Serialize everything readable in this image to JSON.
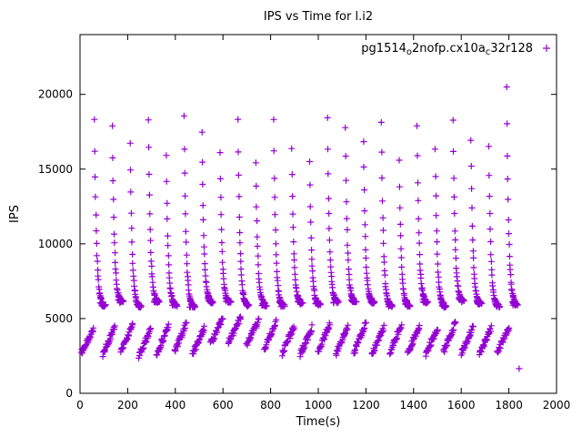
{
  "window": {
    "title": "IPS vs Time for l.i2"
  },
  "chart_data": {
    "type": "scatter",
    "title": "IPS vs Time for l.i2",
    "xlabel": "Time(s)",
    "ylabel": "IPS",
    "xlim": [
      0,
      2000
    ],
    "ylim": [
      0,
      24000
    ],
    "xticks": [
      0,
      200,
      400,
      600,
      800,
      1000,
      1200,
      1400,
      1600,
      1800,
      2000
    ],
    "yticks": [
      0,
      5000,
      10000,
      15000,
      20000
    ],
    "grid": false,
    "frame_color": "#000000",
    "marker": {
      "shape": "plus",
      "color": "#9400D3",
      "size": 7
    },
    "legend": {
      "position": "top-right-inside",
      "label": "pg1514o2nofp.cx10ac32r128",
      "segments": [
        {
          "text": "pg1514"
        },
        {
          "text": "o",
          "sub": true
        },
        {
          "text": "2nofp.cx10a"
        },
        {
          "text": "c",
          "sub": true
        },
        {
          "text": "32r128"
        }
      ],
      "marker": "+"
    },
    "series_model": {
      "description": "Repeating exponential-decay spike clusters (peak ~15500-20400 decaying to ~5900 floor) plus a low band of rising ramps between ~2600 and ~5100 IPS",
      "decay_floor": 5900,
      "decay_tau_points": 5.5,
      "spike_point_step_s": 1.5,
      "spikes": [
        {
          "t": 60,
          "peak": 18300
        },
        {
          "t": 135,
          "peak": 17800
        },
        {
          "t": 210,
          "peak": 16700
        },
        {
          "t": 286,
          "peak": 18400
        },
        {
          "t": 361,
          "peak": 15800
        },
        {
          "t": 436,
          "peak": 18500
        },
        {
          "t": 511,
          "peak": 17400
        },
        {
          "t": 587,
          "peak": 16100
        },
        {
          "t": 662,
          "peak": 18300
        },
        {
          "t": 737,
          "peak": 15500
        },
        {
          "t": 812,
          "peak": 18300
        },
        {
          "t": 888,
          "peak": 16400
        },
        {
          "t": 963,
          "peak": 15400
        },
        {
          "t": 1038,
          "peak": 18300
        },
        {
          "t": 1113,
          "peak": 17900
        },
        {
          "t": 1189,
          "peak": 16900
        },
        {
          "t": 1264,
          "peak": 18200
        },
        {
          "t": 1339,
          "peak": 15500
        },
        {
          "t": 1414,
          "peak": 17800
        },
        {
          "t": 1490,
          "peak": 16400
        },
        {
          "t": 1565,
          "peak": 18200
        },
        {
          "t": 1640,
          "peak": 17000
        },
        {
          "t": 1715,
          "peak": 16400
        },
        {
          "t": 1790,
          "peak": 20400
        }
      ],
      "low_ramps": [
        {
          "t": 5,
          "y_start": 2700,
          "y_end": 4200,
          "dur": 50
        },
        {
          "t": 95,
          "y_start": 2600,
          "y_end": 4400,
          "dur": 50
        },
        {
          "t": 170,
          "y_start": 2800,
          "y_end": 4600,
          "dur": 50
        },
        {
          "t": 246,
          "y_start": 2500,
          "y_end": 4300,
          "dur": 50
        },
        {
          "t": 321,
          "y_start": 2650,
          "y_end": 4500,
          "dur": 50
        },
        {
          "t": 396,
          "y_start": 2750,
          "y_end": 4700,
          "dur": 50
        },
        {
          "t": 471,
          "y_start": 2600,
          "y_end": 4400,
          "dur": 50
        },
        {
          "t": 547,
          "y_start": 3300,
          "y_end": 5000,
          "dur": 52
        },
        {
          "t": 622,
          "y_start": 3400,
          "y_end": 5100,
          "dur": 52
        },
        {
          "t": 697,
          "y_start": 3200,
          "y_end": 4900,
          "dur": 52
        },
        {
          "t": 772,
          "y_start": 2900,
          "y_end": 4800,
          "dur": 50
        },
        {
          "t": 848,
          "y_start": 2700,
          "y_end": 4500,
          "dur": 50
        },
        {
          "t": 923,
          "y_start": 2600,
          "y_end": 4400,
          "dur": 50
        },
        {
          "t": 998,
          "y_start": 2800,
          "y_end": 4600,
          "dur": 50
        },
        {
          "t": 1073,
          "y_start": 2650,
          "y_end": 4500,
          "dur": 50
        },
        {
          "t": 1149,
          "y_start": 2700,
          "y_end": 4700,
          "dur": 50
        },
        {
          "t": 1224,
          "y_start": 2600,
          "y_end": 4400,
          "dur": 50
        },
        {
          "t": 1299,
          "y_start": 2750,
          "y_end": 4600,
          "dur": 50
        },
        {
          "t": 1374,
          "y_start": 2700,
          "y_end": 4500,
          "dur": 50
        },
        {
          "t": 1450,
          "y_start": 2600,
          "y_end": 4400,
          "dur": 50
        },
        {
          "t": 1525,
          "y_start": 2800,
          "y_end": 4700,
          "dur": 50
        },
        {
          "t": 1600,
          "y_start": 2700,
          "y_end": 4500,
          "dur": 50
        },
        {
          "t": 1675,
          "y_start": 2600,
          "y_end": 4400,
          "dur": 50
        },
        {
          "t": 1750,
          "y_start": 2700,
          "y_end": 4400,
          "dur": 50
        }
      ],
      "outliers": [
        [
          1843,
          1650
        ]
      ]
    }
  }
}
